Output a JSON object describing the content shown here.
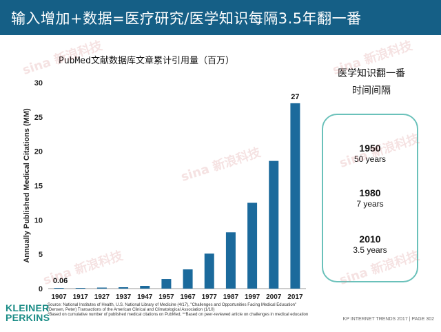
{
  "header": {
    "title": "输入增加+数据=医疗研究/医学知识每隔3.5年翻一番"
  },
  "chart_data": {
    "type": "bar",
    "title": "PubMed文献数据库文章累计引用量（百万）",
    "ylabel": "Annually Published Medical Citations (MM)",
    "xlabel": "",
    "categories": [
      "1907",
      "1917",
      "1927",
      "1937",
      "1947",
      "1957",
      "1967",
      "1977",
      "1987",
      "1997",
      "2007",
      "2017"
    ],
    "values": [
      0.06,
      0.08,
      0.15,
      0.2,
      0.4,
      1.4,
      2.8,
      5.1,
      8.2,
      12.5,
      18.6,
      27
    ],
    "ylim": [
      0,
      30
    ],
    "yticks": [
      "0",
      "5",
      "10",
      "15",
      "20",
      "25",
      "30"
    ],
    "data_labels": {
      "first": "0.06",
      "last": "27"
    },
    "bar_color": "#1b6a9c",
    "grid": false
  },
  "sidebar": {
    "heading_line1": "医学知识翻一番",
    "heading_line2": "时间间隔",
    "items": [
      {
        "year": "1950",
        "span": "50 years"
      },
      {
        "year": "1980",
        "span": "7 years"
      },
      {
        "year": "2010",
        "span": "3.5 years"
      }
    ],
    "border_color": "#6ac1ba"
  },
  "source": {
    "line1": "Source: National Institutes of Health, U.S. National Library of Medicine (4/17), \"Challenges and Opportunities Facing Medical Education\"",
    "line2": "(Densen, Peter) Transactions of the American Clinical and Climatological Association (1/10)",
    "line3": "*Based on cumulative number of published medical citations on PubMed, **Based on peer-reviewed article on challenges in medical education"
  },
  "brand": {
    "logo_line1": "KLEINER",
    "logo_line2": "PERKINS",
    "color": "#1a8c86"
  },
  "footer": {
    "text": "KP INTERNET TRENDS 2017  |  PAGE 302"
  },
  "watermark": {
    "text": "sina 新浪科技"
  },
  "colors": {
    "header_bg": "#155f86",
    "accent": "#1b6a9c"
  }
}
